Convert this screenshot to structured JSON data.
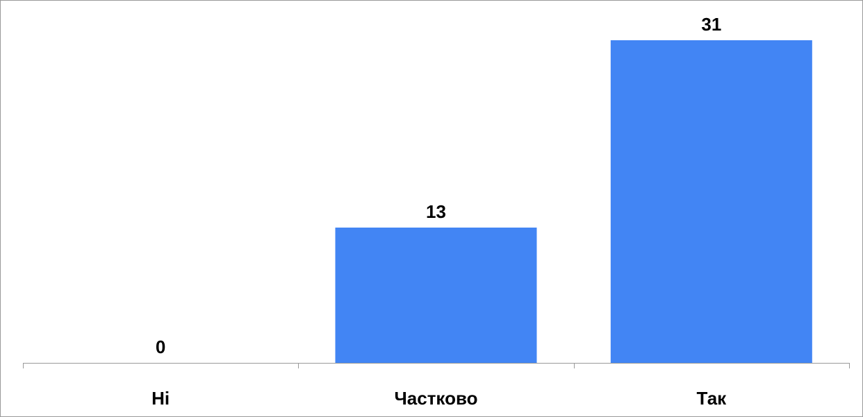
{
  "chart_data": {
    "type": "bar",
    "categories": [
      "Ні",
      "Частково",
      "Так"
    ],
    "values": [
      0,
      13,
      31
    ],
    "data_labels": [
      "0",
      "13",
      "31"
    ],
    "title": "",
    "xlabel": "",
    "ylabel": "",
    "ylim": [
      0,
      31
    ],
    "grid": false,
    "legend": "none",
    "bar_color": "#4285F4",
    "axis_color": "#999999",
    "border_color": "#999999"
  }
}
